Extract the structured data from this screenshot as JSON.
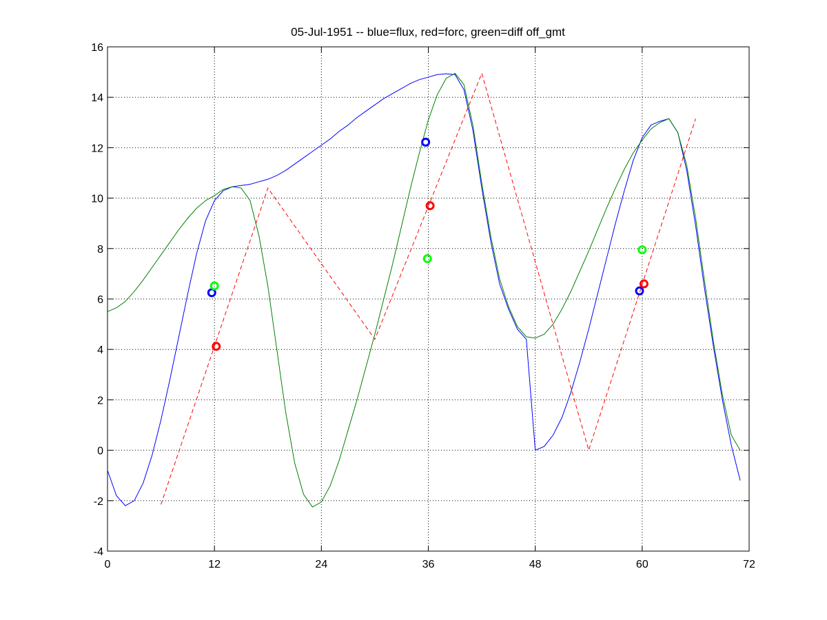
{
  "chart_data": {
    "type": "line",
    "title": "05-Jul-1951 -- blue=flux, red=forc, green=diff off_gmt",
    "xlabel": "",
    "ylabel": "",
    "xlim": [
      0,
      72
    ],
    "ylim": [
      -4,
      16
    ],
    "x_ticks": [
      0,
      12,
      24,
      36,
      48,
      60,
      72
    ],
    "y_ticks": [
      -4,
      -2,
      0,
      2,
      4,
      6,
      8,
      10,
      12,
      14,
      16
    ],
    "grid": true,
    "grid_style": "dotted",
    "series": [
      {
        "color": "#0000ff",
        "style": "solid",
        "points": [
          [
            0,
            -0.8
          ],
          [
            1,
            -1.8
          ],
          [
            2,
            -2.2
          ],
          [
            3,
            -2.0
          ],
          [
            4,
            -1.3
          ],
          [
            5,
            -0.2
          ],
          [
            6,
            1.2
          ],
          [
            7,
            2.8
          ],
          [
            8,
            4.5
          ],
          [
            9,
            6.2
          ],
          [
            10,
            7.8
          ],
          [
            11,
            9.1
          ],
          [
            12,
            9.9
          ],
          [
            13,
            10.3
          ],
          [
            14,
            10.45
          ],
          [
            15,
            10.5
          ],
          [
            16,
            10.55
          ],
          [
            17,
            10.65
          ],
          [
            18,
            10.75
          ],
          [
            19,
            10.9
          ],
          [
            20,
            11.1
          ],
          [
            21,
            11.35
          ],
          [
            22,
            11.6
          ],
          [
            23,
            11.85
          ],
          [
            24,
            12.1
          ],
          [
            25,
            12.35
          ],
          [
            26,
            12.65
          ],
          [
            27,
            12.9
          ],
          [
            28,
            13.2
          ],
          [
            29,
            13.45
          ],
          [
            30,
            13.7
          ],
          [
            31,
            13.95
          ],
          [
            32,
            14.15
          ],
          [
            33,
            14.35
          ],
          [
            34,
            14.55
          ],
          [
            35,
            14.7
          ],
          [
            36,
            14.8
          ],
          [
            37,
            14.9
          ],
          [
            38,
            14.93
          ],
          [
            39,
            14.9
          ],
          [
            40,
            14.3
          ],
          [
            41,
            12.7
          ],
          [
            42,
            10.4
          ],
          [
            43,
            8.3
          ],
          [
            44,
            6.6
          ],
          [
            45,
            5.6
          ],
          [
            46,
            4.8
          ],
          [
            47,
            4.4
          ],
          [
            48,
            0.0
          ],
          [
            49,
            0.15
          ],
          [
            50,
            0.6
          ],
          [
            51,
            1.3
          ],
          [
            52,
            2.3
          ],
          [
            53,
            3.5
          ],
          [
            54,
            4.8
          ],
          [
            55,
            6.2
          ],
          [
            56,
            7.6
          ],
          [
            57,
            9.0
          ],
          [
            58,
            10.3
          ],
          [
            59,
            11.5
          ],
          [
            60,
            12.4
          ],
          [
            61,
            12.9
          ],
          [
            62,
            13.05
          ],
          [
            63,
            13.15
          ],
          [
            64,
            12.6
          ],
          [
            65,
            11.1
          ],
          [
            66,
            8.9
          ],
          [
            67,
            6.4
          ],
          [
            68,
            4.1
          ],
          [
            69,
            2.0
          ],
          [
            70,
            0.2
          ],
          [
            71,
            -1.2
          ]
        ]
      },
      {
        "color": "#ff0000",
        "style": "dashed",
        "points": [
          [
            6,
            -2.15
          ],
          [
            18,
            10.4
          ],
          [
            30,
            4.4
          ],
          [
            42,
            14.95
          ],
          [
            54,
            0.0
          ],
          [
            66,
            13.15
          ]
        ]
      },
      {
        "color": "#008000",
        "style": "solid",
        "points": [
          [
            0,
            5.5
          ],
          [
            1,
            5.65
          ],
          [
            2,
            5.9
          ],
          [
            3,
            6.3
          ],
          [
            4,
            6.75
          ],
          [
            5,
            7.25
          ],
          [
            6,
            7.75
          ],
          [
            7,
            8.25
          ],
          [
            8,
            8.75
          ],
          [
            9,
            9.2
          ],
          [
            10,
            9.6
          ],
          [
            11,
            9.9
          ],
          [
            12,
            10.1
          ],
          [
            13,
            10.35
          ],
          [
            14,
            10.45
          ],
          [
            15,
            10.4
          ],
          [
            16,
            9.9
          ],
          [
            17,
            8.5
          ],
          [
            18,
            6.5
          ],
          [
            19,
            4.0
          ],
          [
            20,
            1.5
          ],
          [
            21,
            -0.5
          ],
          [
            22,
            -1.75
          ],
          [
            23,
            -2.25
          ],
          [
            24,
            -2.05
          ],
          [
            25,
            -1.4
          ],
          [
            26,
            -0.4
          ],
          [
            27,
            0.8
          ],
          [
            28,
            2.0
          ],
          [
            29,
            3.3
          ],
          [
            30,
            4.6
          ],
          [
            31,
            6.0
          ],
          [
            32,
            7.4
          ],
          [
            33,
            8.9
          ],
          [
            34,
            10.4
          ],
          [
            35,
            11.8
          ],
          [
            36,
            13.1
          ],
          [
            37,
            14.1
          ],
          [
            38,
            14.75
          ],
          [
            39,
            14.95
          ],
          [
            40,
            14.5
          ],
          [
            41,
            12.9
          ],
          [
            42,
            10.6
          ],
          [
            43,
            8.5
          ],
          [
            44,
            6.8
          ],
          [
            45,
            5.7
          ],
          [
            46,
            4.9
          ],
          [
            47,
            4.5
          ],
          [
            48,
            4.45
          ],
          [
            49,
            4.6
          ],
          [
            50,
            5.0
          ],
          [
            51,
            5.6
          ],
          [
            52,
            6.3
          ],
          [
            53,
            7.1
          ],
          [
            54,
            7.9
          ],
          [
            55,
            8.75
          ],
          [
            56,
            9.6
          ],
          [
            57,
            10.4
          ],
          [
            58,
            11.15
          ],
          [
            59,
            11.8
          ],
          [
            60,
            12.3
          ],
          [
            61,
            12.75
          ],
          [
            62,
            13.0
          ],
          [
            63,
            13.15
          ],
          [
            64,
            12.6
          ],
          [
            65,
            11.3
          ],
          [
            66,
            9.2
          ],
          [
            67,
            6.7
          ],
          [
            68,
            4.3
          ],
          [
            69,
            2.2
          ],
          [
            70,
            0.6
          ],
          [
            71,
            0.0
          ]
        ]
      }
    ],
    "markers": [
      {
        "color": "#0000ff",
        "x": 11.7,
        "y": 6.25
      },
      {
        "color": "#00ff00",
        "x": 12.0,
        "y": 6.52
      },
      {
        "color": "#ff0000",
        "x": 12.2,
        "y": 4.12
      },
      {
        "color": "#0000ff",
        "x": 35.7,
        "y": 12.22
      },
      {
        "color": "#ff0000",
        "x": 36.2,
        "y": 9.7
      },
      {
        "color": "#00ff00",
        "x": 35.9,
        "y": 7.6
      },
      {
        "color": "#00ff00",
        "x": 60.0,
        "y": 7.95
      },
      {
        "color": "#0000ff",
        "x": 59.7,
        "y": 6.32
      },
      {
        "color": "#ff0000",
        "x": 60.2,
        "y": 6.6
      }
    ]
  }
}
